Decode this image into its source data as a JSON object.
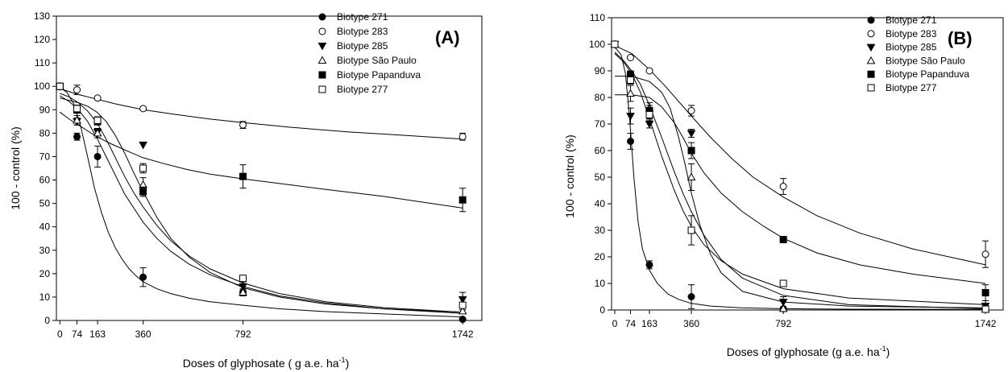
{
  "chart_data": [
    {
      "type": "scatter",
      "panel_label": "(A)",
      "xlabel": "Doses of glyphosate ( g a.e. ha",
      "xlabel_sup": "-1",
      "xlabel_end": ")",
      "ylabel": "100 - control (%)",
      "xlim": [
        -15,
        1825
      ],
      "ylim": [
        0,
        130
      ],
      "x_ticks": [
        0,
        74,
        163,
        360,
        792,
        1742
      ],
      "y_ticks": [
        0,
        10,
        20,
        30,
        40,
        50,
        60,
        70,
        80,
        90,
        100,
        110,
        120,
        130
      ],
      "legend_position": "top-right",
      "series": [
        {
          "name": "Biotype 271",
          "marker": "circle-filled",
          "x": [
            0,
            74,
            163,
            360,
            792,
            1742
          ],
          "y": [
            100,
            78.5,
            70,
            18.5,
            12,
            0.5
          ],
          "err": [
            0,
            1.5,
            4.5,
            4,
            1,
            0.5
          ],
          "fit_x": [
            0,
            30,
            60,
            90,
            120,
            150,
            180,
            210,
            240,
            270,
            300,
            330,
            360,
            420,
            480,
            560,
            650,
            792,
            950,
            1150,
            1400,
            1742
          ],
          "fit_y": [
            99.5,
            97.5,
            92.5,
            83,
            70,
            56.5,
            46,
            37.5,
            31,
            26,
            22,
            19,
            16.5,
            13.5,
            11.5,
            9.5,
            8,
            6.5,
            5,
            3.8,
            2.8,
            1.5
          ]
        },
        {
          "name": "Biotype 283",
          "marker": "circle-open",
          "x": [
            0,
            74,
            163,
            360,
            792,
            1742
          ],
          "y": [
            100,
            98.5,
            95,
            90.5,
            83.5,
            78.5
          ],
          "err": [
            0,
            2,
            0,
            0,
            1.5,
            1.5
          ],
          "fit_x": [
            0,
            80,
            160,
            240,
            360,
            500,
            650,
            792,
            1000,
            1250,
            1500,
            1742
          ],
          "fit_y": [
            99,
            96.5,
            94.5,
            92.5,
            90,
            88,
            86,
            84.5,
            82.5,
            80.5,
            79,
            77.5
          ]
        },
        {
          "name": "Biotype 285",
          "marker": "triangle-down-filled",
          "x": [
            0,
            74,
            163,
            360,
            792,
            1742
          ],
          "y": [
            100,
            85,
            80.5,
            75,
            14.5,
            9
          ],
          "err": [
            0,
            1.5,
            1.5,
            0,
            2,
            3
          ],
          "fit_x": [
            0,
            40,
            80,
            120,
            160,
            200,
            240,
            280,
            320,
            360,
            420,
            480,
            560,
            650,
            792,
            950,
            1150,
            1400,
            1742
          ],
          "fit_y": [
            95,
            94,
            93,
            91.5,
            89,
            85,
            79,
            71.5,
            63,
            55,
            44,
            35,
            27,
            20.5,
            14,
            10,
            7,
            5,
            3.5
          ]
        },
        {
          "name": "Biotype São Paulo",
          "marker": "triangle-up-open",
          "x": [
            0,
            74,
            163,
            360,
            792,
            1742
          ],
          "y": [
            100,
            85.5,
            80,
            58,
            12,
            4
          ],
          "err": [
            0,
            2,
            2,
            3,
            1.5,
            0.5
          ],
          "fit_x": [
            0,
            40,
            80,
            120,
            160,
            200,
            240,
            280,
            320,
            360,
            420,
            480,
            560,
            650,
            792,
            950,
            1150,
            1400,
            1742
          ],
          "fit_y": [
            96,
            93.5,
            90,
            85,
            78,
            70,
            62,
            54,
            48,
            42,
            35,
            29.5,
            24,
            19.5,
            14.5,
            10.5,
            7.5,
            5,
            3
          ]
        },
        {
          "name": "Biotype Papanduva",
          "marker": "square-filled",
          "x": [
            0,
            74,
            163,
            360,
            792,
            1742
          ],
          "y": [
            100,
            90,
            85,
            55,
            61.5,
            51.5
          ],
          "err": [
            0,
            1.5,
            1.5,
            2,
            5,
            5
          ],
          "fit_x": [
            0,
            40,
            80,
            120,
            160,
            220,
            300,
            360,
            450,
            550,
            650,
            792,
            950,
            1150,
            1400,
            1742
          ],
          "fit_y": [
            89,
            86,
            83.5,
            81,
            78.5,
            75.5,
            72,
            69.5,
            67,
            64.5,
            62.5,
            60.5,
            58.5,
            56,
            53,
            48
          ]
        },
        {
          "name": "Biotype 277",
          "marker": "square-open",
          "x": [
            0,
            74,
            163,
            360,
            792,
            1742
          ],
          "y": [
            100,
            90.5,
            85.5,
            65,
            18,
            6.5
          ],
          "err": [
            0,
            1.5,
            1.5,
            2,
            1,
            1
          ],
          "fit_x": [
            0,
            40,
            80,
            120,
            160,
            200,
            240,
            280,
            320,
            360,
            420,
            480,
            560,
            650,
            792,
            950,
            1150,
            1400,
            1742
          ],
          "fit_y": [
            97,
            95.5,
            93,
            89.5,
            84.5,
            77.5,
            69.5,
            61.5,
            54.5,
            48.5,
            40.5,
            34,
            27.5,
            22,
            16,
            11.5,
            8,
            5.5,
            3.5
          ]
        }
      ]
    },
    {
      "type": "scatter",
      "panel_label": "(B)",
      "xlabel": "Doses of glyphosate (g a.e. ha",
      "xlabel_sup": "-1",
      "xlabel_end": ")",
      "ylabel": "100 - control (%)",
      "xlim": [
        -15,
        1825
      ],
      "ylim": [
        0,
        110
      ],
      "x_ticks": [
        0,
        74,
        163,
        360,
        792,
        1742
      ],
      "y_ticks": [
        0,
        10,
        20,
        30,
        40,
        50,
        60,
        70,
        80,
        90,
        100,
        110
      ],
      "legend_position": "top-right",
      "series": [
        {
          "name": "Biotype 271",
          "marker": "circle-filled",
          "x": [
            0,
            74,
            163,
            360,
            792,
            1742
          ],
          "y": [
            100,
            63.5,
            17,
            5,
            0.5,
            0.3
          ],
          "err": [
            0,
            3,
            1.5,
            4.5,
            0,
            0
          ],
          "fit_x": [
            0,
            30,
            50,
            70,
            90,
            110,
            130,
            163,
            200,
            250,
            300,
            360,
            450,
            600,
            792,
            1100,
            1742
          ],
          "fit_y": [
            99,
            96,
            89,
            72,
            50,
            33,
            23,
            15,
            10,
            6,
            4,
            2.5,
            1.5,
            0.8,
            0.5,
            0.3,
            0.2
          ]
        },
        {
          "name": "Biotype 283",
          "marker": "circle-open",
          "x": [
            0,
            74,
            163,
            360,
            792,
            1742
          ],
          "y": [
            100,
            95,
            90,
            75,
            46.5,
            21
          ],
          "err": [
            0,
            0,
            0,
            2,
            3,
            5
          ],
          "fit_x": [
            0,
            80,
            163,
            240,
            300,
            360,
            450,
            550,
            650,
            792,
            950,
            1150,
            1400,
            1742
          ],
          "fit_y": [
            99.5,
            96.5,
            90.5,
            84,
            78.5,
            73,
            65,
            57,
            50,
            42.5,
            35.5,
            29,
            23,
            17
          ]
        },
        {
          "name": "Biotype 285",
          "marker": "triangle-down-filled",
          "x": [
            0,
            74,
            163,
            360,
            792,
            1742
          ],
          "y": [
            100,
            73,
            70,
            66.5,
            3,
            1.5
          ],
          "err": [
            0,
            3,
            1.5,
            1.5,
            2,
            2
          ],
          "fit_x": [
            0,
            50,
            100,
            163,
            220,
            260,
            300,
            330,
            360,
            400,
            450,
            500,
            600,
            792,
            1100,
            1742
          ],
          "fit_y": [
            88,
            88,
            87.5,
            86,
            82,
            76,
            65,
            55,
            44,
            32,
            21,
            14,
            7,
            3,
            1.5,
            0.8
          ]
        },
        {
          "name": "Biotype São Paulo",
          "marker": "triangle-up-open",
          "x": [
            0,
            74,
            163,
            360,
            792,
            1742
          ],
          "y": [
            100,
            81.5,
            76,
            50,
            0.5,
            0.3
          ],
          "err": [
            0,
            3,
            2,
            5,
            0,
            0
          ],
          "fit_x": [
            0,
            40,
            80,
            120,
            163,
            220,
            280,
            320,
            360,
            420,
            500,
            600,
            792,
            1100,
            1742
          ],
          "fit_y": [
            97,
            94,
            90,
            85,
            77,
            65,
            52,
            44,
            37,
            28,
            19,
            12,
            5.5,
            2,
            0.5
          ]
        },
        {
          "name": "Biotype Papanduva",
          "marker": "square-filled",
          "x": [
            0,
            74,
            163,
            360,
            792,
            1742
          ],
          "y": [
            100,
            88.5,
            75,
            60,
            26.5,
            6.5
          ],
          "err": [
            0,
            1.5,
            2,
            3,
            1,
            3
          ],
          "fit_x": [
            0,
            80,
            163,
            220,
            280,
            320,
            360,
            420,
            500,
            600,
            700,
            792,
            950,
            1150,
            1400,
            1742
          ],
          "fit_y": [
            81,
            81,
            80,
            76.5,
            70.5,
            65,
            59,
            51.5,
            44,
            37,
            31.5,
            27,
            21.5,
            17,
            13.5,
            10
          ]
        },
        {
          "name": "Biotype 277",
          "marker": "square-open",
          "x": [
            0,
            74,
            163,
            360,
            792,
            1742
          ],
          "y": [
            100,
            86.5,
            73.5,
            30,
            10,
            0.3
          ],
          "err": [
            0,
            1.5,
            1.5,
            5.5,
            0,
            0
          ],
          "fit_x": [
            0,
            40,
            80,
            120,
            163,
            220,
            280,
            320,
            360,
            420,
            500,
            600,
            792,
            1100,
            1742
          ],
          "fit_y": [
            96.5,
            93.5,
            89,
            82,
            72,
            58,
            45,
            37.5,
            31.5,
            24.5,
            18.5,
            13.5,
            8,
            4.5,
            2
          ]
        }
      ]
    }
  ]
}
